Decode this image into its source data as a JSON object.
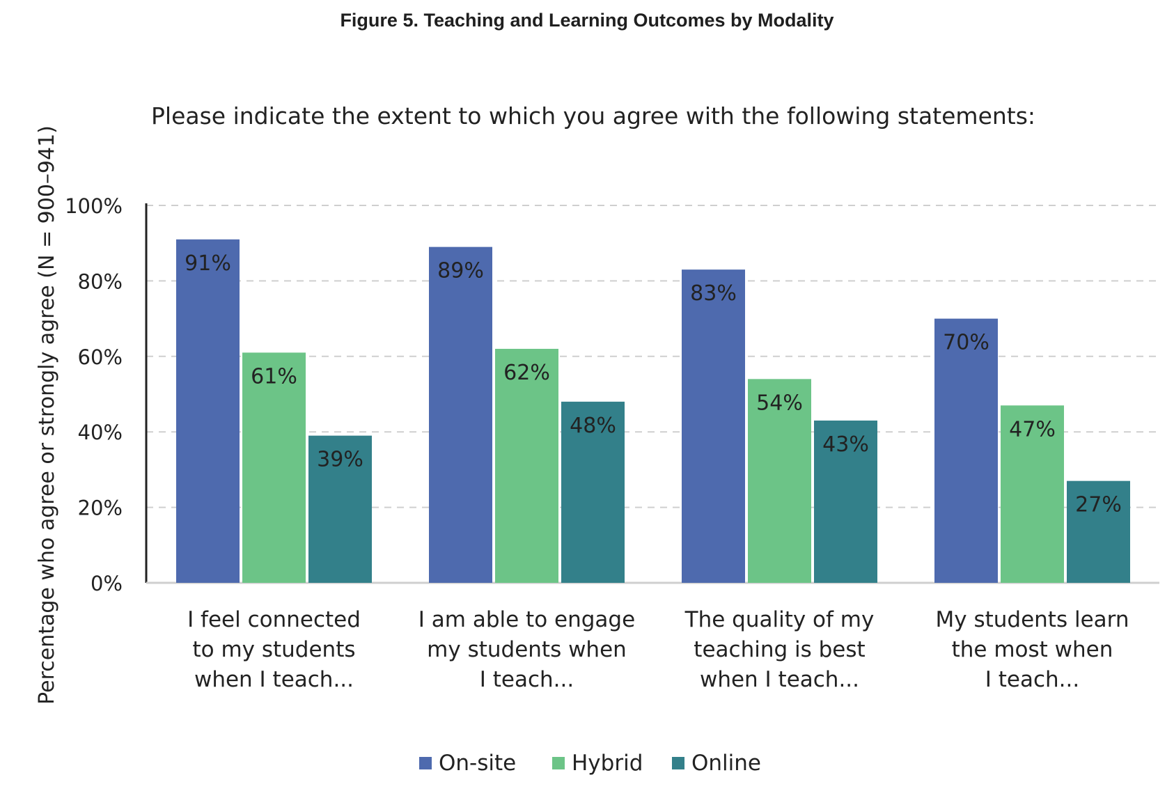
{
  "figure_title": "Figure 5. Teaching and Learning Outcomes by Modality",
  "colors": {
    "onsite": "#4e6aae",
    "hybrid": "#6cc487",
    "online": "#33808a"
  },
  "chart_data": {
    "type": "bar",
    "title": "Please indicate the extent to which you agree with the following statements:",
    "ylabel": "Percentage who agree or strongly agree (N = 900–941)",
    "xlabel": "",
    "ylim": [
      0,
      100
    ],
    "yticks": [
      "0%",
      "20%",
      "40%",
      "60%",
      "80%",
      "100%"
    ],
    "grid": true,
    "legend_position": "bottom",
    "categories": [
      [
        "I feel connected",
        "to my students",
        "when I teach..."
      ],
      [
        "I am able to engage",
        "my students when",
        "I teach..."
      ],
      [
        "The quality of my",
        "teaching is best",
        "when I teach..."
      ],
      [
        "My students learn",
        "the most when",
        "I teach..."
      ]
    ],
    "series": [
      {
        "name": "On-site",
        "values": [
          91,
          89,
          83,
          70
        ],
        "labels": [
          "91%",
          "89%",
          "83%",
          "70%"
        ]
      },
      {
        "name": "Hybrid",
        "values": [
          61,
          62,
          54,
          47
        ],
        "labels": [
          "61%",
          "62%",
          "54%",
          "47%"
        ]
      },
      {
        "name": "Online",
        "values": [
          39,
          48,
          43,
          27
        ],
        "labels": [
          "39%",
          "48%",
          "43%",
          "27%"
        ]
      }
    ]
  }
}
